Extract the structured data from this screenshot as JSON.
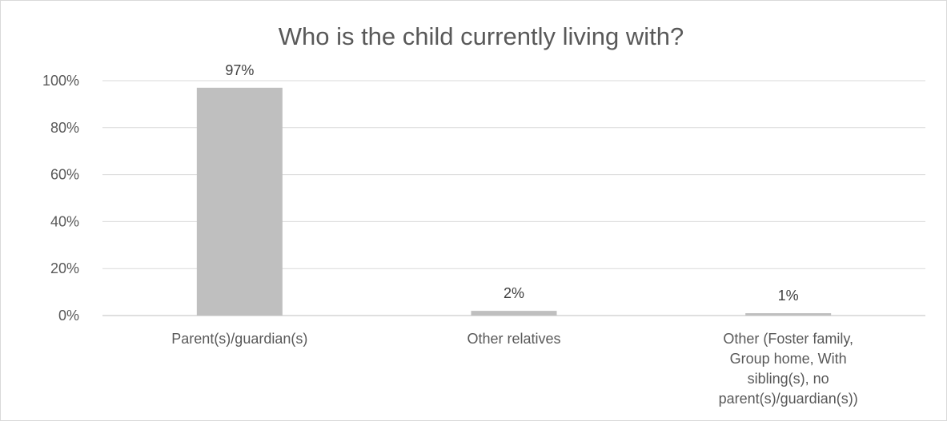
{
  "chart_data": {
    "type": "bar",
    "title": "Who is the child currently living with?",
    "categories": [
      [
        "Parent(s)/guardian(s)"
      ],
      [
        "Other relatives"
      ],
      [
        "Other (Foster family,",
        "Group home, With",
        "sibling(s), no",
        "parent(s)/guardian(s))"
      ]
    ],
    "values": [
      0.97,
      0.02,
      0.01
    ],
    "data_labels": [
      "97%",
      "2%",
      "1%"
    ],
    "yticks": [
      0,
      0.2,
      0.4,
      0.6,
      0.8,
      1.0
    ],
    "ytick_labels": [
      "0%",
      "20%",
      "40%",
      "60%",
      "80%",
      "100%"
    ],
    "ylim": [
      0,
      1.0
    ],
    "xlabel": "",
    "ylabel": "",
    "grid": true,
    "legend": "none",
    "colors": {
      "bar": "#bfbfbf",
      "grid": "#d9d9d9",
      "axis": "#bfbfbf",
      "text": "#595959"
    }
  }
}
